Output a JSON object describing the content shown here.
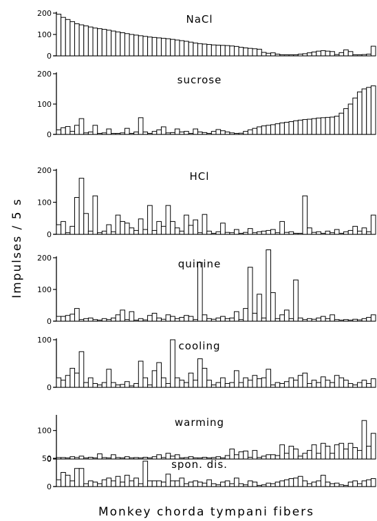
{
  "chart_data": {
    "type": "bar",
    "ylabel": "Impulses / 5 s",
    "xlabel": "Monkey chorda tympani fibers",
    "n_fibers": 70,
    "panels": [
      {
        "name": "NaCl",
        "ylim": [
          0,
          200
        ],
        "yticks": [
          0,
          100,
          200
        ],
        "values": [
          195,
          180,
          170,
          160,
          150,
          145,
          140,
          135,
          130,
          127,
          124,
          120,
          116,
          112,
          108,
          104,
          100,
          97,
          94,
          91,
          88,
          86,
          84,
          82,
          80,
          77,
          74,
          71,
          68,
          64,
          60,
          57,
          55,
          53,
          51,
          50,
          49,
          48,
          46,
          44,
          40,
          37,
          35,
          33,
          31,
          16,
          12,
          14,
          8,
          5,
          3,
          4,
          5,
          8,
          10,
          14,
          18,
          22,
          24,
          22,
          20,
          6,
          15,
          28,
          20,
          5,
          4,
          6,
          8,
          45
        ]
      },
      {
        "name": "sucrose",
        "ylim": [
          0,
          200
        ],
        "yticks": [
          0,
          100,
          200
        ],
        "values": [
          15,
          22,
          26,
          10,
          30,
          52,
          5,
          8,
          30,
          2,
          5,
          18,
          2,
          3,
          5,
          20,
          3,
          8,
          55,
          8,
          3,
          10,
          15,
          25,
          5,
          6,
          18,
          8,
          10,
          3,
          18,
          8,
          6,
          3,
          10,
          16,
          12,
          8,
          5,
          2,
          4,
          10,
          15,
          20,
          25,
          28,
          30,
          32,
          35,
          38,
          40,
          42,
          45,
          47,
          49,
          50,
          52,
          54,
          55,
          56,
          57,
          60,
          70,
          85,
          100,
          120,
          140,
          150,
          155,
          160
        ]
      },
      {
        "name": "HCl",
        "ylim": [
          0,
          200
        ],
        "yticks": [
          0,
          100,
          200
        ],
        "values": [
          30,
          40,
          5,
          25,
          115,
          175,
          65,
          10,
          120,
          5,
          10,
          30,
          8,
          60,
          40,
          35,
          20,
          12,
          48,
          15,
          90,
          12,
          40,
          25,
          90,
          40,
          20,
          10,
          60,
          28,
          45,
          5,
          62,
          10,
          3,
          8,
          35,
          6,
          5,
          15,
          2,
          6,
          18,
          5,
          8,
          10,
          12,
          15,
          5,
          40,
          6,
          8,
          3,
          2,
          120,
          20,
          6,
          8,
          3,
          10,
          5,
          15,
          3,
          8,
          12,
          25,
          10,
          20,
          8,
          60
        ]
      },
      {
        "name": "quinine",
        "ylim": [
          0,
          200
        ],
        "yticks": [
          0,
          100,
          200
        ],
        "values": [
          15,
          15,
          18,
          22,
          40,
          5,
          8,
          10,
          5,
          3,
          8,
          5,
          10,
          20,
          35,
          5,
          30,
          3,
          8,
          4,
          18,
          25,
          10,
          6,
          20,
          15,
          8,
          12,
          18,
          15,
          5,
          185,
          20,
          8,
          6,
          10,
          15,
          8,
          10,
          30,
          5,
          40,
          170,
          25,
          85,
          10,
          225,
          90,
          8,
          20,
          35,
          8,
          130,
          10,
          5,
          8,
          6,
          10,
          15,
          8,
          20,
          5,
          3,
          5,
          3,
          6,
          4,
          8,
          12,
          20
        ]
      },
      {
        "name": "cooling",
        "ylim": [
          0,
          100
        ],
        "yticks": [
          0,
          100
        ],
        "values": [
          20,
          15,
          25,
          40,
          30,
          75,
          10,
          20,
          8,
          5,
          10,
          38,
          10,
          5,
          6,
          12,
          3,
          8,
          55,
          20,
          5,
          35,
          52,
          20,
          8,
          100,
          20,
          15,
          10,
          30,
          15,
          60,
          40,
          15,
          5,
          10,
          20,
          8,
          10,
          35,
          10,
          20,
          15,
          25,
          18,
          20,
          38,
          5,
          10,
          8,
          12,
          20,
          15,
          25,
          30,
          8,
          15,
          10,
          22,
          15,
          10,
          25,
          20,
          15,
          8,
          5,
          10,
          15,
          8,
          18
        ]
      },
      {
        "name": "warming",
        "ylim": [
          0,
          150
        ],
        "yticks": [
          0,
          100
        ],
        "values": [
          5,
          5,
          3,
          8,
          5,
          10,
          3,
          6,
          2,
          18,
          5,
          3,
          15,
          5,
          3,
          8,
          4,
          5,
          2,
          6,
          3,
          8,
          15,
          5,
          20,
          10,
          15,
          3,
          5,
          8,
          4,
          3,
          6,
          2,
          5,
          8,
          3,
          12,
          35,
          15,
          25,
          28,
          6,
          30,
          5,
          10,
          15,
          15,
          12,
          50,
          20,
          45,
          35,
          10,
          20,
          30,
          50,
          20,
          55,
          45,
          20,
          50,
          55,
          35,
          55,
          40,
          30,
          135,
          45,
          90
        ]
      },
      {
        "name": "spon. dis.",
        "ylim": [
          0,
          50
        ],
        "yticks": [
          0,
          50
        ],
        "values": [
          12,
          25,
          20,
          10,
          32,
          32,
          5,
          10,
          8,
          5,
          12,
          15,
          10,
          18,
          8,
          20,
          10,
          15,
          5,
          45,
          10,
          10,
          10,
          8,
          22,
          10,
          10,
          15,
          5,
          8,
          10,
          8,
          6,
          12,
          5,
          3,
          8,
          10,
          5,
          15,
          5,
          3,
          10,
          8,
          2,
          3,
          6,
          5,
          8,
          10,
          12,
          14,
          15,
          18,
          10,
          5,
          8,
          10,
          20,
          8,
          5,
          6,
          3,
          2,
          8,
          10,
          5,
          10,
          12,
          14
        ]
      }
    ]
  }
}
